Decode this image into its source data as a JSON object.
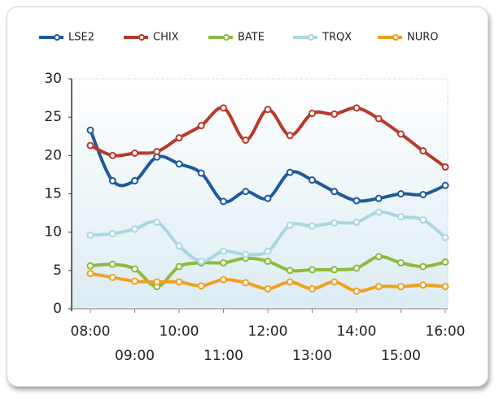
{
  "chart_data": {
    "type": "line",
    "categories": [
      "08:00",
      null,
      "09:00",
      null,
      "10:00",
      null,
      "11:00",
      null,
      "12:00",
      null,
      "13:00",
      null,
      "14:00",
      null,
      "15:00",
      null,
      "16:00"
    ],
    "series": [
      {
        "name": "LSE2",
        "color": "#1f5a9a",
        "values": [
          23.3,
          16.7,
          16.7,
          19.8,
          18.9,
          17.7,
          14.0,
          15.3,
          14.4,
          17.8,
          16.8,
          15.3,
          14.1,
          14.4,
          15.0,
          14.9,
          16.1
        ]
      },
      {
        "name": "CHIX",
        "color": "#b8392a",
        "values": [
          21.3,
          20.0,
          20.3,
          20.5,
          22.3,
          23.9,
          26.2,
          22.0,
          26.0,
          22.6,
          25.5,
          25.4,
          26.2,
          24.8,
          22.8,
          20.6,
          18.5
        ]
      },
      {
        "name": "BATE",
        "color": "#8cba3c",
        "values": [
          5.6,
          5.8,
          5.2,
          2.9,
          5.5,
          6.0,
          6.0,
          6.6,
          6.2,
          5.0,
          5.1,
          5.1,
          5.3,
          6.8,
          6.0,
          5.5,
          6.1
        ]
      },
      {
        "name": "TRQX",
        "color": "#a9d7df",
        "values": [
          9.6,
          9.8,
          10.4,
          11.3,
          8.2,
          6.2,
          7.5,
          7.1,
          7.5,
          10.9,
          10.8,
          11.2,
          11.3,
          12.6,
          12.0,
          11.6,
          9.3
        ]
      },
      {
        "name": "NURO",
        "color": "#f0a01e",
        "values": [
          4.6,
          4.1,
          3.6,
          3.5,
          3.5,
          3.0,
          3.8,
          3.4,
          2.6,
          3.5,
          2.6,
          3.5,
          2.3,
          2.9,
          2.9,
          3.1,
          2.9
        ]
      }
    ],
    "ylim": [
      0,
      30
    ],
    "yticks": [
      0,
      5,
      10,
      15,
      20,
      25,
      30
    ],
    "legend": "top"
  }
}
